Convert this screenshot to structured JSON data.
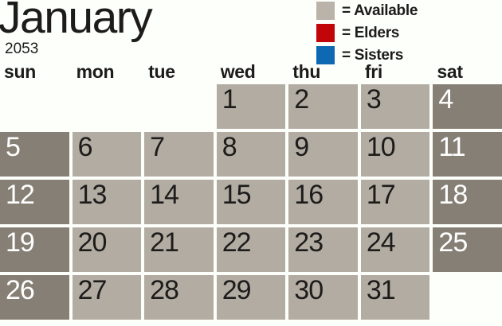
{
  "title": {
    "month": "January",
    "year": "2053"
  },
  "legend": {
    "items": [
      {
        "name": "available",
        "label": "= Available",
        "color": "#b9b3aa"
      },
      {
        "name": "elders",
        "label": "= Elders",
        "color": "#c10508"
      },
      {
        "name": "sisters",
        "label": "= Sisters",
        "color": "#0e68b2"
      }
    ]
  },
  "calendar": {
    "day_headers": [
      "sun",
      "mon",
      "tue",
      "wed",
      "thu",
      "fri",
      "sat"
    ],
    "weeks": [
      [
        null,
        null,
        null,
        1,
        2,
        3,
        4
      ],
      [
        5,
        6,
        7,
        8,
        9,
        10,
        11
      ],
      [
        12,
        13,
        14,
        15,
        16,
        17,
        18
      ],
      [
        19,
        20,
        21,
        22,
        23,
        24,
        25
      ],
      [
        26,
        27,
        28,
        29,
        30,
        31,
        null
      ]
    ],
    "colors": {
      "weekday_cell": "#b2aca3",
      "weekend_cell": "#867f75",
      "weekday_text": "#1d1c1a",
      "weekend_text": "#ffffff",
      "background": "#fdfffb"
    }
  }
}
